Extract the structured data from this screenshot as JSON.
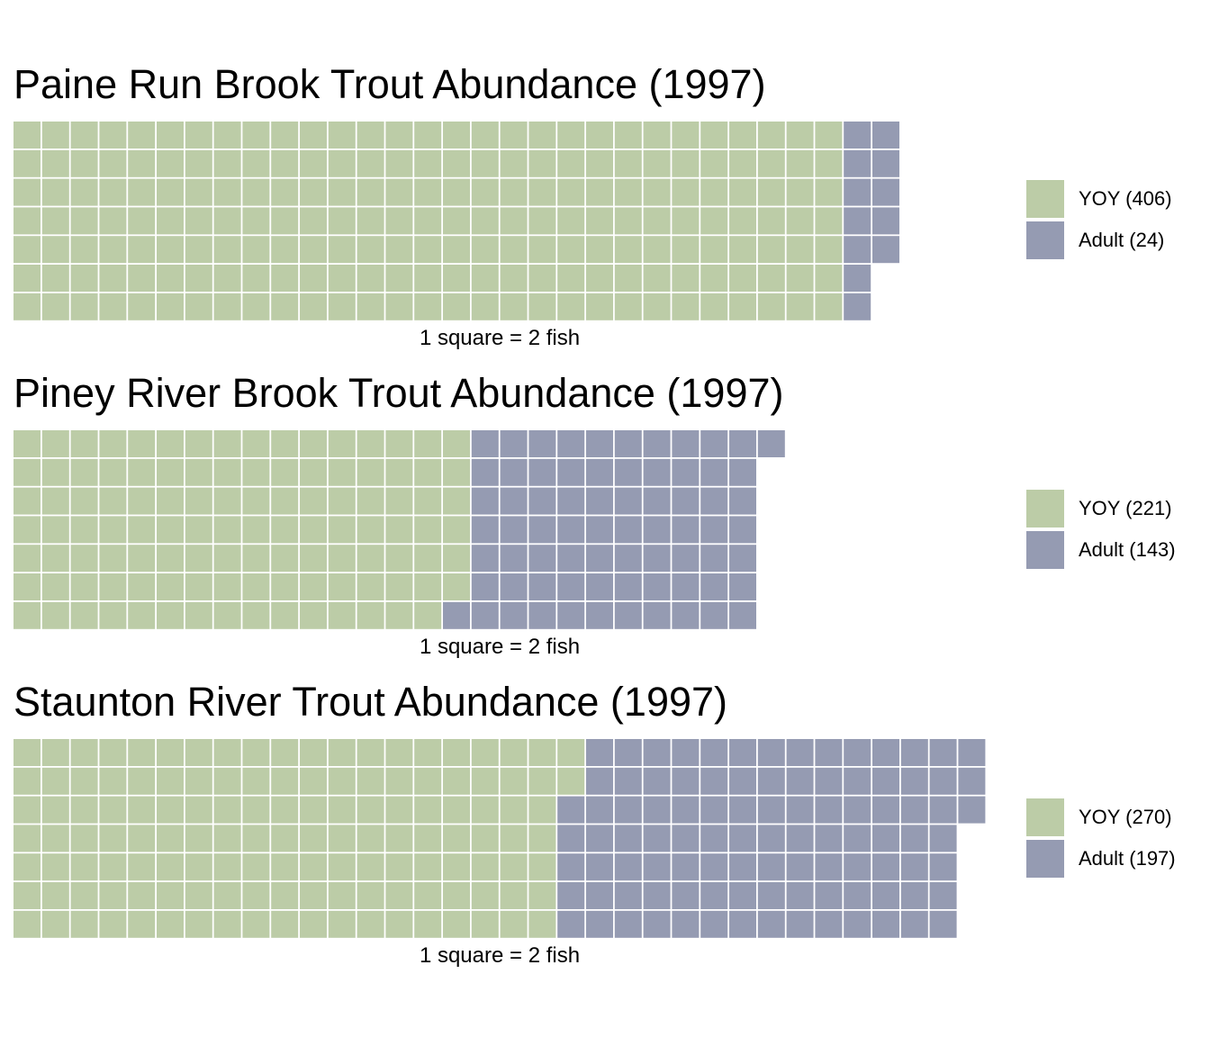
{
  "chart_data": [
    {
      "type": "waffle",
      "title": "Paine Run Brook Trout Abundance (1997)",
      "caption": "1 square = 2 fish",
      "rows": 7,
      "series": [
        {
          "name": "YOY",
          "label": "YOY (406)",
          "fish": 406,
          "squares": 203,
          "color": "#bccca7"
        },
        {
          "name": "Adult",
          "label": "Adult (24)",
          "fish": 24,
          "squares": 12,
          "color": "#959bb2"
        }
      ]
    },
    {
      "type": "waffle",
      "title": "Piney River Brook Trout Abundance (1997)",
      "caption": "1 square = 2 fish",
      "rows": 7,
      "series": [
        {
          "name": "YOY",
          "label": "YOY (221)",
          "fish": 221,
          "squares": 110.5,
          "color": "#bccca7"
        },
        {
          "name": "Adult",
          "label": "Adult (143)",
          "fish": 143,
          "squares": 71.5,
          "color": "#959bb2"
        }
      ]
    },
    {
      "type": "waffle",
      "title": "Staunton River Trout Abundance (1997)",
      "caption": "1 square = 2 fish",
      "rows": 7,
      "series": [
        {
          "name": "YOY",
          "label": "YOY (270)",
          "fish": 270,
          "squares": 135,
          "color": "#bccca7"
        },
        {
          "name": "Adult",
          "label": "Adult (197)",
          "fish": 197,
          "squares": 98.5,
          "color": "#959bb2"
        }
      ]
    }
  ]
}
